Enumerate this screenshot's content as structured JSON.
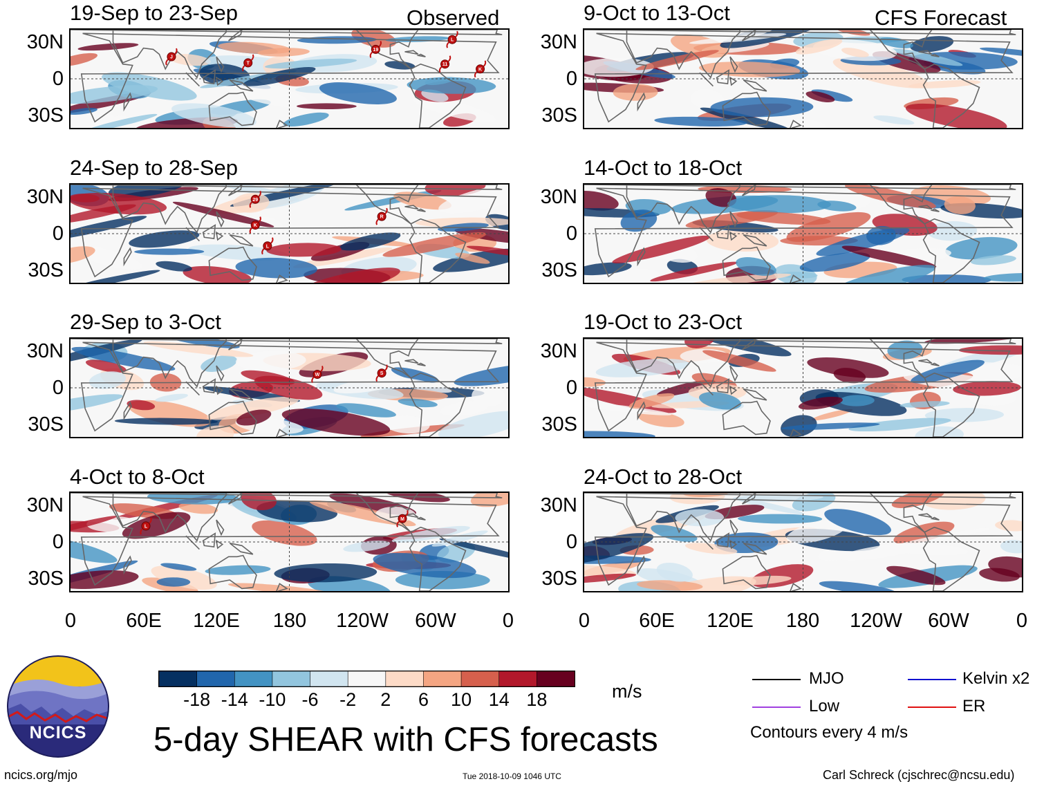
{
  "header": {
    "observed_label": "Observed",
    "forecast_label": "CFS Forecast"
  },
  "axes": {
    "lat_labels": [
      "30N",
      "0",
      "30S"
    ],
    "lon_labels": [
      "0",
      "60E",
      "120E",
      "180",
      "120W",
      "60W",
      "0"
    ]
  },
  "panels": [
    {
      "title": "19-Sep to 23-Sep",
      "kind": "observed",
      "storms": [
        {
          "label": "J",
          "lon": 83,
          "lat": 18
        },
        {
          "label": "T",
          "lon": 146,
          "lat": 13
        },
        {
          "label": "19",
          "lon": -109,
          "lat": 24
        },
        {
          "label": "L",
          "lon": -46,
          "lat": 32
        },
        {
          "label": "11",
          "lon": -52,
          "lat": 12
        },
        {
          "label": "K",
          "lon": -23,
          "lat": 8
        }
      ]
    },
    {
      "title": "9-Oct to 13-Oct",
      "kind": "forecast",
      "storms": []
    },
    {
      "title": "24-Sep to 28-Sep",
      "kind": "observed",
      "storms": [
        {
          "label": "29",
          "lon": 152,
          "lat": 28
        },
        {
          "label": "K",
          "lon": 152,
          "lat": 7
        },
        {
          "label": "L",
          "lon": 162,
          "lat": -10
        },
        {
          "label": "R",
          "lon": -104,
          "lat": 14
        }
      ]
    },
    {
      "title": "14-Oct to 18-Oct",
      "kind": "forecast",
      "storms": []
    },
    {
      "title": "29-Sep to 3-Oct",
      "kind": "observed",
      "storms": [
        {
          "label": "W",
          "lon": -157,
          "lat": 11
        },
        {
          "label": "S",
          "lon": -104,
          "lat": 12
        }
      ]
    },
    {
      "title": "19-Oct to 23-Oct",
      "kind": "forecast",
      "storms": []
    },
    {
      "title": "4-Oct to 8-Oct",
      "kind": "observed",
      "storms": [
        {
          "label": "L",
          "lon": 62,
          "lat": 13
        },
        {
          "label": "M",
          "lon": -87,
          "lat": 19
        }
      ]
    },
    {
      "title": "24-Oct to 28-Oct",
      "kind": "forecast",
      "storms": []
    }
  ],
  "colorbar": {
    "colors": [
      "#053061",
      "#2166ac",
      "#4393c3",
      "#92c5de",
      "#d1e5f0",
      "#f7f7f7",
      "#fddbc7",
      "#f4a582",
      "#d6604d",
      "#b2182b",
      "#67001f"
    ],
    "tick_labels": [
      "-18",
      "-14",
      "-10",
      "-6",
      "-2",
      "2",
      "6",
      "10",
      "14",
      "18"
    ],
    "units": "m/s"
  },
  "legend": {
    "items": [
      {
        "label": "MJO",
        "color": "#000000"
      },
      {
        "label": "Kelvin x2",
        "color": "#1010d0"
      },
      {
        "label": "Low",
        "color": "#a040e0"
      },
      {
        "label": "ER",
        "color": "#e01010"
      }
    ],
    "contour_note": "Contours every 4 m/s"
  },
  "footer": {
    "main_title": "5-day SHEAR with CFS forecasts",
    "url": "ncics.org/mjo",
    "timestamp": "Tue 2018-10-09 1046 UTC",
    "credit": "Carl Schreck (cjschrec@ncsu.edu)",
    "logo_text": "NCICS"
  }
}
